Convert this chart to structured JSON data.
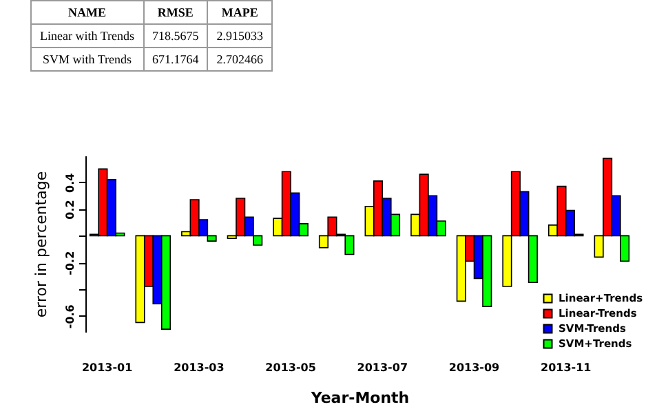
{
  "chart_data": [
    {
      "type": "other",
      "annotations": [
        "NAME",
        "RMSE",
        "MAPE",
        "Linear with Trends",
        "718.5675",
        "2.915033",
        "SVM with Trends",
        "671.1764",
        "2.702466"
      ]
    },
    {
      "type": "bar",
      "xlabel": "Year-Month",
      "ylabel": "error in percentage",
      "categories": [
        "2013-01",
        null,
        "2013-03",
        null,
        "2013-05",
        null,
        "2013-07",
        null,
        "2013-09",
        null,
        "2013-11",
        null
      ],
      "series": [
        {
          "name": "Linear+Trends",
          "color": "#ffff00",
          "values": [
            0.01,
            -0.65,
            0.03,
            -0.02,
            0.13,
            -0.09,
            0.22,
            0.16,
            -0.49,
            -0.38,
            0.08,
            -0.16
          ]
        },
        {
          "name": "Linear-Trends",
          "color": "#ff0000",
          "values": [
            0.5,
            -0.38,
            0.27,
            0.28,
            0.48,
            0.14,
            0.41,
            0.46,
            -0.19,
            0.48,
            0.37,
            0.58
          ]
        },
        {
          "name": "SVM-Trends",
          "color": "#0000ff",
          "values": [
            0.42,
            -0.51,
            0.12,
            0.14,
            0.32,
            0.01,
            0.28,
            0.3,
            -0.32,
            0.33,
            0.19,
            0.3
          ]
        },
        {
          "name": "SVM+Trends",
          "color": "#00ff00",
          "values": [
            0.02,
            -0.7,
            -0.04,
            -0.07,
            0.09,
            -0.14,
            0.16,
            0.11,
            -0.53,
            -0.35,
            0.01,
            -0.19
          ]
        }
      ],
      "ylim": [
        -0.72,
        0.6
      ],
      "yticks": [
        0.4,
        0.2,
        {
          "value": 0,
          "label": null
        },
        -0.2,
        {
          "value": -0.4,
          "label": null
        },
        -0.6
      ],
      "legend": "bottom right"
    }
  ]
}
